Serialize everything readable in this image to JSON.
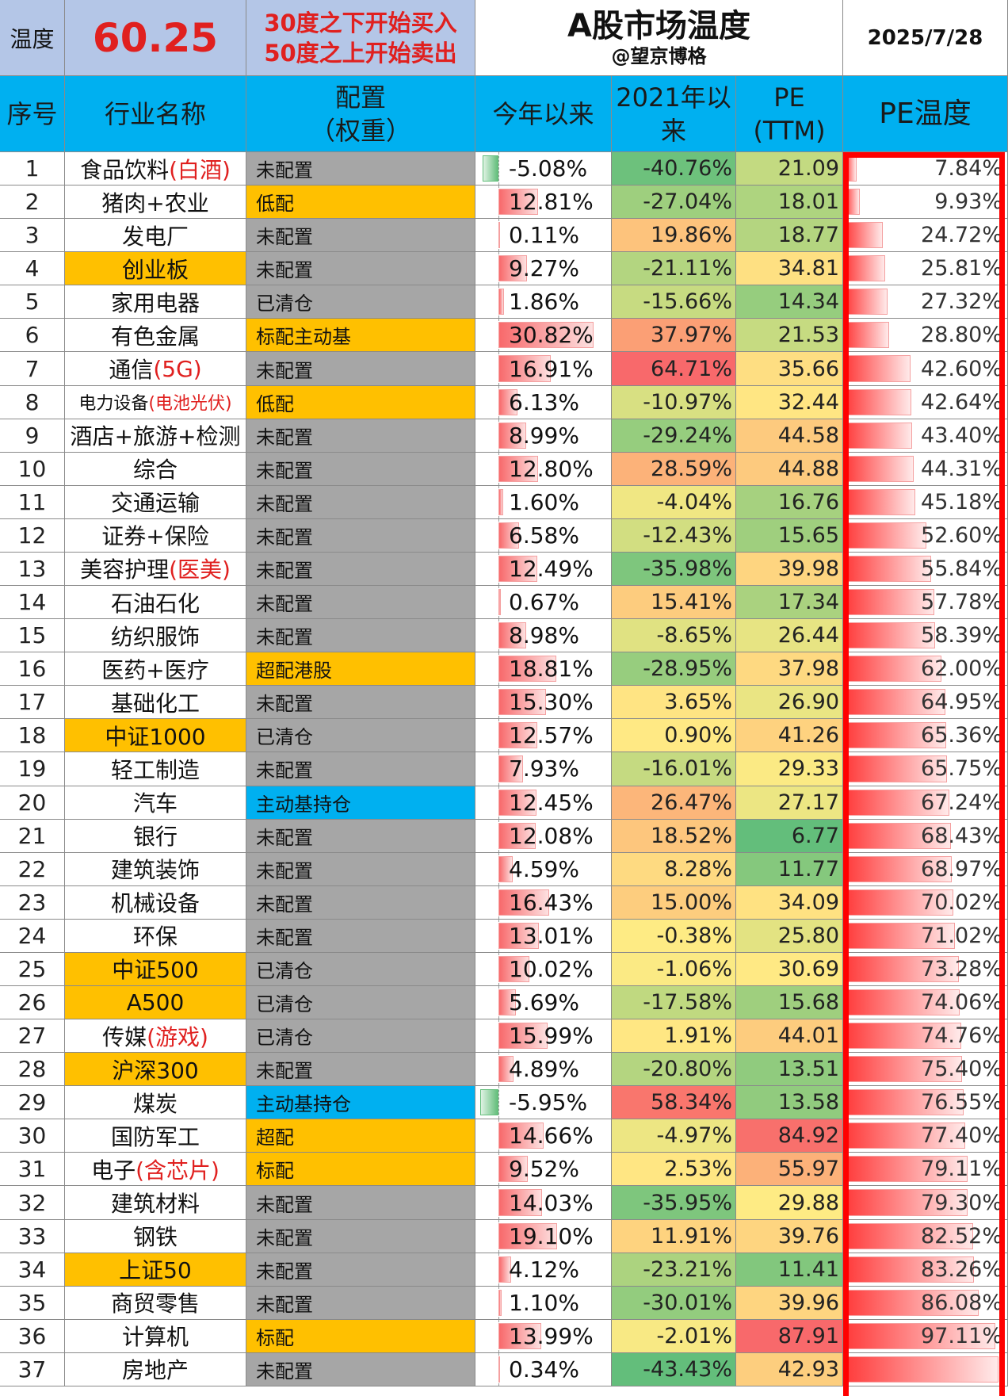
{
  "header": {
    "temp_label": "温度",
    "temp_value": "60.25",
    "rule_line1": "30度之下开始买入",
    "rule_line2": "50度之上开始卖出",
    "title": "A股市场温度",
    "subtitle": "@望京博格",
    "date": "2025/7/28"
  },
  "columns": {
    "no": "序号",
    "name": "行业名称",
    "alloc_line1": "配置",
    "alloc_line2": "（权重）",
    "ytd": "今年以来",
    "since2021_line1": "2021年以",
    "since2021_line2": "来",
    "pe_line1": "PE",
    "pe_line2": "(TTM)",
    "pe_temp": "PE温度"
  },
  "colors": {
    "header_blue": "#00b0f0",
    "top_blue": "#b4c6e7",
    "highlight_red": "#e0201f",
    "alloc_gray": "#a6a6a6",
    "alloc_gold": "#ffc000",
    "alloc_cyan": "#00b0f0",
    "frame_red": "#ff0000"
  },
  "rows": [
    {
      "no": "1",
      "name": "食品饮料",
      "hl": "(白酒)",
      "name_bg": "",
      "alloc": "未配置",
      "alloc_color": "gray",
      "ytd": "-5.08%",
      "ytd_v": -5.08,
      "r21": "-40.76%",
      "r21_v": -40.76,
      "pe": "21.09",
      "pe_v": 21.09,
      "pt": "7.84%",
      "pt_v": 7.84
    },
    {
      "no": "2",
      "name": "猪肉+农业",
      "hl": "",
      "name_bg": "",
      "alloc": "低配",
      "alloc_color": "gold",
      "ytd": "12.81%",
      "ytd_v": 12.81,
      "r21": "-27.04%",
      "r21_v": -27.04,
      "pe": "18.01",
      "pe_v": 18.01,
      "pt": "9.93%",
      "pt_v": 9.93
    },
    {
      "no": "3",
      "name": "发电厂",
      "hl": "",
      "name_bg": "",
      "alloc": "未配置",
      "alloc_color": "gray",
      "ytd": "0.11%",
      "ytd_v": 0.11,
      "r21": "19.86%",
      "r21_v": 19.86,
      "pe": "18.77",
      "pe_v": 18.77,
      "pt": "24.72%",
      "pt_v": 24.72
    },
    {
      "no": "4",
      "name": "创业板",
      "hl": "",
      "name_bg": "gold",
      "alloc": "未配置",
      "alloc_color": "gray",
      "ytd": "9.27%",
      "ytd_v": 9.27,
      "r21": "-21.11%",
      "r21_v": -21.11,
      "pe": "34.81",
      "pe_v": 34.81,
      "pt": "25.81%",
      "pt_v": 25.81
    },
    {
      "no": "5",
      "name": "家用电器",
      "hl": "",
      "name_bg": "",
      "alloc": "已清仓",
      "alloc_color": "gray",
      "ytd": "1.86%",
      "ytd_v": 1.86,
      "r21": "-15.66%",
      "r21_v": -15.66,
      "pe": "14.34",
      "pe_v": 14.34,
      "pt": "27.32%",
      "pt_v": 27.32
    },
    {
      "no": "6",
      "name": "有色金属",
      "hl": "",
      "name_bg": "",
      "alloc": "标配主动基",
      "alloc_color": "gold",
      "ytd": "30.82%",
      "ytd_v": 30.82,
      "r21": "37.97%",
      "r21_v": 37.97,
      "pe": "21.53",
      "pe_v": 21.53,
      "pt": "28.80%",
      "pt_v": 28.8
    },
    {
      "no": "7",
      "name": "通信",
      "hl": "(5G)",
      "name_bg": "",
      "alloc": "未配置",
      "alloc_color": "gray",
      "ytd": "16.91%",
      "ytd_v": 16.91,
      "r21": "64.71%",
      "r21_v": 64.71,
      "pe": "35.66",
      "pe_v": 35.66,
      "pt": "42.60%",
      "pt_v": 42.6
    },
    {
      "no": "8",
      "name": "电力设备",
      "hl": "(电池光伏)",
      "name_bg": "",
      "small": true,
      "alloc": "低配",
      "alloc_color": "gold",
      "ytd": "6.13%",
      "ytd_v": 6.13,
      "r21": "-10.97%",
      "r21_v": -10.97,
      "pe": "32.44",
      "pe_v": 32.44,
      "pt": "42.64%",
      "pt_v": 42.64
    },
    {
      "no": "9",
      "name": "酒店+旅游+检测",
      "hl": "",
      "name_bg": "",
      "alloc": "未配置",
      "alloc_color": "gray",
      "ytd": "8.99%",
      "ytd_v": 8.99,
      "r21": "-29.24%",
      "r21_v": -29.24,
      "pe": "44.58",
      "pe_v": 44.58,
      "pt": "43.40%",
      "pt_v": 43.4
    },
    {
      "no": "10",
      "name": "综合",
      "hl": "",
      "name_bg": "",
      "alloc": "未配置",
      "alloc_color": "gray",
      "ytd": "12.80%",
      "ytd_v": 12.8,
      "r21": "28.59%",
      "r21_v": 28.59,
      "pe": "44.88",
      "pe_v": 44.88,
      "pt": "44.31%",
      "pt_v": 44.31
    },
    {
      "no": "11",
      "name": "交通运输",
      "hl": "",
      "name_bg": "",
      "alloc": "未配置",
      "alloc_color": "gray",
      "ytd": "1.60%",
      "ytd_v": 1.6,
      "r21": "-4.04%",
      "r21_v": -4.04,
      "pe": "16.76",
      "pe_v": 16.76,
      "pt": "45.18%",
      "pt_v": 45.18
    },
    {
      "no": "12",
      "name": "证券+保险",
      "hl": "",
      "name_bg": "",
      "alloc": "未配置",
      "alloc_color": "gray",
      "ytd": "6.58%",
      "ytd_v": 6.58,
      "r21": "-12.43%",
      "r21_v": -12.43,
      "pe": "15.65",
      "pe_v": 15.65,
      "pt": "52.60%",
      "pt_v": 52.6
    },
    {
      "no": "13",
      "name": "美容护理",
      "hl": "(医美)",
      "name_bg": "",
      "alloc": "未配置",
      "alloc_color": "gray",
      "ytd": "12.49%",
      "ytd_v": 12.49,
      "r21": "-35.98%",
      "r21_v": -35.98,
      "pe": "39.98",
      "pe_v": 39.98,
      "pt": "55.84%",
      "pt_v": 55.84
    },
    {
      "no": "14",
      "name": "石油石化",
      "hl": "",
      "name_bg": "",
      "alloc": "未配置",
      "alloc_color": "gray",
      "ytd": "0.67%",
      "ytd_v": 0.67,
      "r21": "15.41%",
      "r21_v": 15.41,
      "pe": "17.34",
      "pe_v": 17.34,
      "pt": "57.78%",
      "pt_v": 57.78
    },
    {
      "no": "15",
      "name": "纺织服饰",
      "hl": "",
      "name_bg": "",
      "alloc": "未配置",
      "alloc_color": "gray",
      "ytd": "8.98%",
      "ytd_v": 8.98,
      "r21": "-8.65%",
      "r21_v": -8.65,
      "pe": "26.44",
      "pe_v": 26.44,
      "pt": "58.39%",
      "pt_v": 58.39
    },
    {
      "no": "16",
      "name": "医药+医疗",
      "hl": "",
      "name_bg": "",
      "alloc": "超配港股",
      "alloc_color": "gold",
      "ytd": "18.81%",
      "ytd_v": 18.81,
      "r21": "-28.95%",
      "r21_v": -28.95,
      "pe": "37.98",
      "pe_v": 37.98,
      "pt": "62.00%",
      "pt_v": 62.0
    },
    {
      "no": "17",
      "name": "基础化工",
      "hl": "",
      "name_bg": "",
      "alloc": "未配置",
      "alloc_color": "gray",
      "ytd": "15.30%",
      "ytd_v": 15.3,
      "r21": "3.65%",
      "r21_v": 3.65,
      "pe": "26.90",
      "pe_v": 26.9,
      "pt": "64.95%",
      "pt_v": 64.95
    },
    {
      "no": "18",
      "name": "中证1000",
      "hl": "",
      "name_bg": "gold",
      "alloc": "已清仓",
      "alloc_color": "gray",
      "ytd": "12.57%",
      "ytd_v": 12.57,
      "r21": "0.90%",
      "r21_v": 0.9,
      "pe": "41.26",
      "pe_v": 41.26,
      "pt": "65.36%",
      "pt_v": 65.36
    },
    {
      "no": "19",
      "name": "轻工制造",
      "hl": "",
      "name_bg": "",
      "alloc": "未配置",
      "alloc_color": "gray",
      "ytd": "7.93%",
      "ytd_v": 7.93,
      "r21": "-16.01%",
      "r21_v": -16.01,
      "pe": "29.33",
      "pe_v": 29.33,
      "pt": "65.75%",
      "pt_v": 65.75
    },
    {
      "no": "20",
      "name": "汽车",
      "hl": "",
      "name_bg": "",
      "alloc": "主动基持仓",
      "alloc_color": "cyan",
      "ytd": "12.45%",
      "ytd_v": 12.45,
      "r21": "26.47%",
      "r21_v": 26.47,
      "pe": "27.17",
      "pe_v": 27.17,
      "pt": "67.24%",
      "pt_v": 67.24
    },
    {
      "no": "21",
      "name": "银行",
      "hl": "",
      "name_bg": "",
      "alloc": "未配置",
      "alloc_color": "gray",
      "ytd": "12.08%",
      "ytd_v": 12.08,
      "r21": "18.52%",
      "r21_v": 18.52,
      "pe": "6.77",
      "pe_v": 6.77,
      "pt": "68.43%",
      "pt_v": 68.43
    },
    {
      "no": "22",
      "name": "建筑装饰",
      "hl": "",
      "name_bg": "",
      "alloc": "未配置",
      "alloc_color": "gray",
      "ytd": "4.59%",
      "ytd_v": 4.59,
      "r21": "8.28%",
      "r21_v": 8.28,
      "pe": "11.77",
      "pe_v": 11.77,
      "pt": "68.97%",
      "pt_v": 68.97
    },
    {
      "no": "23",
      "name": "机械设备",
      "hl": "",
      "name_bg": "",
      "alloc": "未配置",
      "alloc_color": "gray",
      "ytd": "16.43%",
      "ytd_v": 16.43,
      "r21": "15.00%",
      "r21_v": 15.0,
      "pe": "34.09",
      "pe_v": 34.09,
      "pt": "70.02%",
      "pt_v": 70.02
    },
    {
      "no": "24",
      "name": "环保",
      "hl": "",
      "name_bg": "",
      "alloc": "未配置",
      "alloc_color": "gray",
      "ytd": "13.01%",
      "ytd_v": 13.01,
      "r21": "-0.38%",
      "r21_v": -0.38,
      "pe": "25.80",
      "pe_v": 25.8,
      "pt": "71.02%",
      "pt_v": 71.02
    },
    {
      "no": "25",
      "name": "中证500",
      "hl": "",
      "name_bg": "gold",
      "alloc": "已清仓",
      "alloc_color": "gray",
      "ytd": "10.02%",
      "ytd_v": 10.02,
      "r21": "-1.06%",
      "r21_v": -1.06,
      "pe": "30.69",
      "pe_v": 30.69,
      "pt": "73.28%",
      "pt_v": 73.28
    },
    {
      "no": "26",
      "name": "A500",
      "hl": "",
      "name_bg": "gold",
      "alloc": "已清仓",
      "alloc_color": "gray",
      "ytd": "5.69%",
      "ytd_v": 5.69,
      "r21": "-17.58%",
      "r21_v": -17.58,
      "pe": "15.68",
      "pe_v": 15.68,
      "pt": "74.06%",
      "pt_v": 74.06
    },
    {
      "no": "27",
      "name": "传媒",
      "hl": "(游戏)",
      "name_bg": "",
      "alloc": "已清仓",
      "alloc_color": "gray",
      "ytd": "15.99%",
      "ytd_v": 15.99,
      "r21": "1.91%",
      "r21_v": 1.91,
      "pe": "44.01",
      "pe_v": 44.01,
      "pt": "74.76%",
      "pt_v": 74.76
    },
    {
      "no": "28",
      "name": "沪深300",
      "hl": "",
      "name_bg": "gold",
      "alloc": "未配置",
      "alloc_color": "gray",
      "ytd": "4.89%",
      "ytd_v": 4.89,
      "r21": "-20.80%",
      "r21_v": -20.8,
      "pe": "13.51",
      "pe_v": 13.51,
      "pt": "75.40%",
      "pt_v": 75.4
    },
    {
      "no": "29",
      "name": "煤炭",
      "hl": "",
      "name_bg": "",
      "alloc": "主动基持仓",
      "alloc_color": "cyan",
      "ytd": "-5.95%",
      "ytd_v": -5.95,
      "r21": "58.34%",
      "r21_v": 58.34,
      "pe": "13.58",
      "pe_v": 13.58,
      "pt": "76.55%",
      "pt_v": 76.55
    },
    {
      "no": "30",
      "name": "国防军工",
      "hl": "",
      "name_bg": "",
      "alloc": "超配",
      "alloc_color": "gold",
      "ytd": "14.66%",
      "ytd_v": 14.66,
      "r21": "-4.97%",
      "r21_v": -4.97,
      "pe": "84.92",
      "pe_v": 84.92,
      "pt": "77.40%",
      "pt_v": 77.4
    },
    {
      "no": "31",
      "name": "电子",
      "hl": "(含芯片)",
      "name_bg": "",
      "alloc": "标配",
      "alloc_color": "gold",
      "ytd": "9.52%",
      "ytd_v": 9.52,
      "r21": "2.53%",
      "r21_v": 2.53,
      "pe": "55.97",
      "pe_v": 55.97,
      "pt": "79.11%",
      "pt_v": 79.11
    },
    {
      "no": "32",
      "name": "建筑材料",
      "hl": "",
      "name_bg": "",
      "alloc": "未配置",
      "alloc_color": "gray",
      "ytd": "14.03%",
      "ytd_v": 14.03,
      "r21": "-35.95%",
      "r21_v": -35.95,
      "pe": "29.88",
      "pe_v": 29.88,
      "pt": "79.30%",
      "pt_v": 79.3
    },
    {
      "no": "33",
      "name": "钢铁",
      "hl": "",
      "name_bg": "",
      "alloc": "未配置",
      "alloc_color": "gray",
      "ytd": "19.10%",
      "ytd_v": 19.1,
      "r21": "11.91%",
      "r21_v": 11.91,
      "pe": "39.76",
      "pe_v": 39.76,
      "pt": "82.52%",
      "pt_v": 82.52
    },
    {
      "no": "34",
      "name": "上证50",
      "hl": "",
      "name_bg": "gold",
      "alloc": "未配置",
      "alloc_color": "gray",
      "ytd": "4.12%",
      "ytd_v": 4.12,
      "r21": "-23.21%",
      "r21_v": -23.21,
      "pe": "11.41",
      "pe_v": 11.41,
      "pt": "83.26%",
      "pt_v": 83.26
    },
    {
      "no": "35",
      "name": "商贸零售",
      "hl": "",
      "name_bg": "",
      "alloc": "未配置",
      "alloc_color": "gray",
      "ytd": "1.10%",
      "ytd_v": 1.1,
      "r21": "-30.01%",
      "r21_v": -30.01,
      "pe": "39.96",
      "pe_v": 39.96,
      "pt": "86.08%",
      "pt_v": 86.08
    },
    {
      "no": "36",
      "name": "计算机",
      "hl": "",
      "name_bg": "",
      "alloc": "标配",
      "alloc_color": "gold",
      "ytd": "13.99%",
      "ytd_v": 13.99,
      "r21": "-2.01%",
      "r21_v": -2.01,
      "pe": "87.91",
      "pe_v": 87.91,
      "pt": "97.11%",
      "pt_v": 97.11
    },
    {
      "no": "37",
      "name": "房地产",
      "hl": "",
      "name_bg": "",
      "alloc": "未配置",
      "alloc_color": "gray",
      "ytd": "0.34%",
      "ytd_v": 0.34,
      "r21": "-43.43%",
      "r21_v": -43.43,
      "pe": "42.93",
      "pe_v": 42.93,
      "pt": "",
      "pt_v": 99.0
    }
  ]
}
